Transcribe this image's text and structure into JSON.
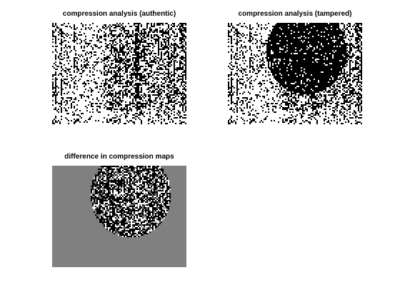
{
  "figure": {
    "background": "#ffffff",
    "panels": [
      {
        "title": "compression analysis (authentic)",
        "kind": "binary-noise-map",
        "colors": {
          "foreground": "#000000",
          "background": "#ffffff"
        }
      },
      {
        "title": "compression analysis (tampered)",
        "kind": "binary-noise-map-with-dark-region",
        "colors": {
          "foreground": "#000000",
          "background": "#ffffff"
        }
      },
      {
        "title": "difference in compression maps",
        "kind": "difference-map",
        "colors": {
          "neutral": "#808080",
          "positive": "#ffffff",
          "negative": "#000000"
        }
      }
    ]
  }
}
